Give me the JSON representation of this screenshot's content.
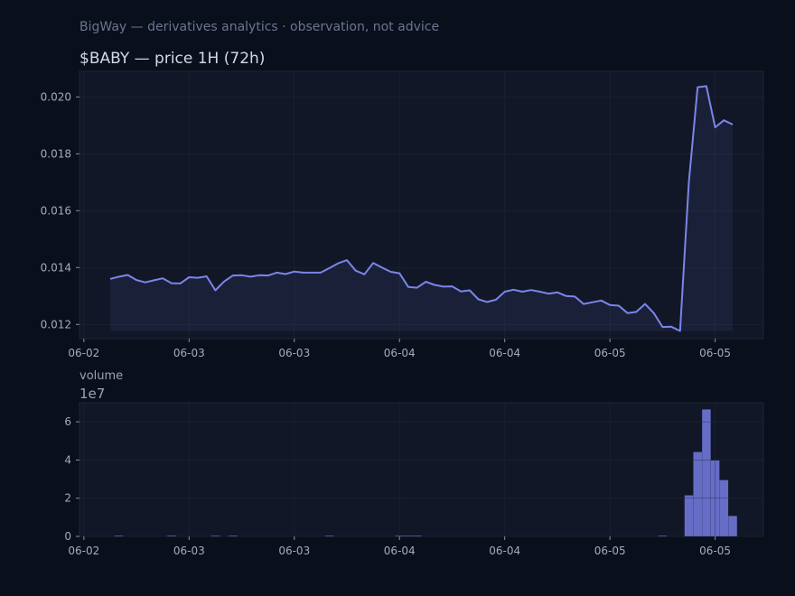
{
  "supertitle": "BigWay — derivatives analytics · observation, not advice",
  "colors": {
    "background": "#0a0f1c",
    "plot_bg": "#111726",
    "grid": "#1c2233",
    "line": "#7b85ea",
    "bar": "#6a72cf"
  },
  "chart_data": [
    {
      "type": "line",
      "title": "$BABY — price 1H (72h)",
      "xlabel": "",
      "ylabel": "",
      "ylim": [
        0.0115,
        0.0209
      ],
      "xlim": [
        -3.5,
        74.5
      ],
      "grid": true,
      "x_ticks": [
        {
          "x": -3,
          "label": "06-02"
        },
        {
          "x": 9,
          "label": "06-03"
        },
        {
          "x": 21,
          "label": "06-03"
        },
        {
          "x": 33,
          "label": "06-04"
        },
        {
          "x": 45,
          "label": "06-04"
        },
        {
          "x": 57,
          "label": "06-05"
        },
        {
          "x": 69,
          "label": "06-05"
        }
      ],
      "y_ticks": [
        {
          "y": 0.012,
          "label": "0.012"
        },
        {
          "y": 0.014,
          "label": "0.014"
        },
        {
          "y": 0.016,
          "label": "0.016"
        },
        {
          "y": 0.018,
          "label": "0.018"
        },
        {
          "y": 0.02,
          "label": "0.020"
        }
      ],
      "fill_baseline": 0.01177,
      "series": [
        {
          "values": [
            0.0136,
            0.01368,
            0.01374,
            0.01356,
            0.01348,
            0.01355,
            0.01362,
            0.01345,
            0.01344,
            0.01366,
            0.01364,
            0.01369,
            0.0132,
            0.01351,
            0.01372,
            0.01373,
            0.01368,
            0.01373,
            0.01372,
            0.01382,
            0.01377,
            0.01386,
            0.01382,
            0.01382,
            0.01382,
            0.01398,
            0.01415,
            0.01426,
            0.01389,
            0.01376,
            0.01416,
            0.014,
            0.01385,
            0.0138,
            0.01332,
            0.01329,
            0.0135,
            0.01339,
            0.01333,
            0.01334,
            0.01316,
            0.0132,
            0.01288,
            0.01279,
            0.01287,
            0.01315,
            0.01322,
            0.01315,
            0.01321,
            0.01315,
            0.01308,
            0.01313,
            0.013,
            0.01298,
            0.01272,
            0.01278,
            0.01284,
            0.01268,
            0.01266,
            0.0124,
            0.01244,
            0.01272,
            0.0124,
            0.01191,
            0.01192,
            0.01177,
            0.017,
            0.02034,
            0.02038,
            0.01893,
            0.01918,
            0.01903
          ]
        }
      ]
    },
    {
      "type": "bar",
      "title": "volume",
      "offset_text": "1e7",
      "xlabel": "",
      "ylabel": "",
      "ylim": [
        0,
        7.0
      ],
      "xlim": [
        -3.5,
        74.5
      ],
      "grid": true,
      "x_ticks": [
        {
          "x": -3,
          "label": "06-02"
        },
        {
          "x": 9,
          "label": "06-03"
        },
        {
          "x": 21,
          "label": "06-03"
        },
        {
          "x": 33,
          "label": "06-04"
        },
        {
          "x": 45,
          "label": "06-04"
        },
        {
          "x": 57,
          "label": "06-05"
        },
        {
          "x": 69,
          "label": "06-05"
        }
      ],
      "y_ticks": [
        {
          "y": 0,
          "label": "0"
        },
        {
          "y": 2,
          "label": "2"
        },
        {
          "y": 4,
          "label": "4"
        },
        {
          "y": 6,
          "label": "6"
        }
      ],
      "series": [
        {
          "values": [
            0,
            0.03,
            0,
            0,
            0,
            0,
            0,
            0.04,
            0,
            0,
            0,
            0,
            0.03,
            0,
            0.02,
            0,
            0,
            0,
            0,
            0,
            0,
            0,
            0,
            0,
            0,
            0.02,
            0,
            0,
            0,
            0,
            0,
            0,
            0,
            0.03,
            0.03,
            0.02,
            0,
            0,
            0,
            0,
            0,
            0,
            0,
            0,
            0,
            0,
            0,
            0,
            0,
            0,
            0,
            0,
            0,
            0,
            0,
            0,
            0,
            0,
            0,
            0,
            0,
            0,
            0,
            0.03,
            0,
            0,
            2.15,
            4.42,
            6.65,
            3.98,
            2.95,
            1.07
          ]
        }
      ]
    }
  ]
}
